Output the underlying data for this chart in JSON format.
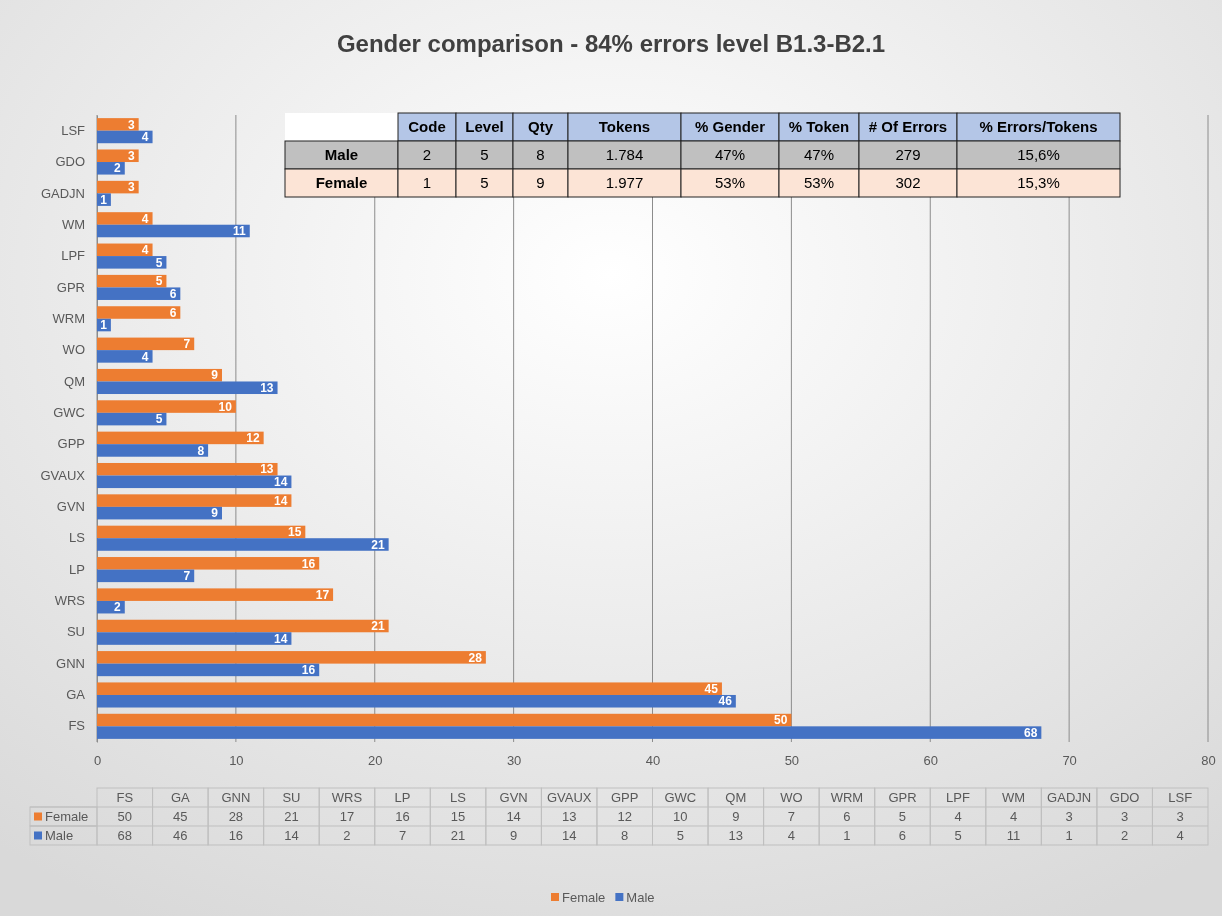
{
  "chart_data": [
    {
      "type": "bar",
      "orientation": "horizontal",
      "title": "Gender comparison - 84% errors level B1.3-B2.1",
      "categories": [
        "LSF",
        "GDO",
        "GADJN",
        "WM",
        "LPF",
        "GPR",
        "WRM",
        "WO",
        "QM",
        "GWC",
        "GPP",
        "GVAUX",
        "GVN",
        "LS",
        "LP",
        "WRS",
        "SU",
        "GNN",
        "GA",
        "FS"
      ],
      "series": [
        {
          "name": "Female",
          "color": "#ed7d31",
          "values": [
            3,
            3,
            3,
            4,
            4,
            5,
            6,
            7,
            9,
            10,
            12,
            13,
            14,
            15,
            16,
            17,
            21,
            28,
            45,
            50
          ]
        },
        {
          "name": "Male",
          "color": "#4472c4",
          "values": [
            4,
            2,
            1,
            11,
            5,
            6,
            1,
            4,
            13,
            5,
            8,
            14,
            9,
            21,
            7,
            2,
            14,
            16,
            46,
            68
          ]
        }
      ],
      "xlim": [
        0,
        80
      ],
      "xticks": [
        0,
        10,
        20,
        30,
        40,
        50,
        60,
        70,
        80
      ],
      "grid": "x",
      "legend": "bottom",
      "data_labels": true
    },
    {
      "type": "other",
      "categories": [
        "Code",
        "Level",
        "Qty",
        "Tokens",
        "% Gender",
        "% Token",
        "# Of Errors",
        "% Errors/Tokens"
      ],
      "y_categories": [
        "Male",
        "Female"
      ],
      "cell_labels": [
        [
          "2",
          "5",
          "8",
          "1.784",
          "47%",
          "47%",
          "279",
          "15,6%"
        ],
        [
          "1",
          "5",
          "9",
          "1.977",
          "53%",
          "53%",
          "302",
          "15,3%"
        ]
      ]
    },
    {
      "type": "other",
      "categories": [
        "FS",
        "GA",
        "GNN",
        "SU",
        "WRS",
        "LP",
        "LS",
        "GVN",
        "GVAUX",
        "GPP",
        "GWC",
        "QM",
        "WO",
        "WRM",
        "GPR",
        "LPF",
        "WM",
        "GADJN",
        "GDO",
        "LSF"
      ],
      "y_categories": [
        "Female",
        "Male"
      ],
      "colors": [
        "#ed7d31",
        "#4472c4"
      ],
      "cell_labels": [
        [
          "50",
          "45",
          "28",
          "21",
          "17",
          "16",
          "15",
          "14",
          "13",
          "12",
          "10",
          "9",
          "7",
          "6",
          "5",
          "4",
          "4",
          "3",
          "3",
          "3"
        ],
        [
          "68",
          "46",
          "16",
          "14",
          "2",
          "7",
          "21",
          "9",
          "14",
          "8",
          "5",
          "13",
          "4",
          "1",
          "6",
          "5",
          "11",
          "1",
          "2",
          "4"
        ]
      ]
    }
  ]
}
